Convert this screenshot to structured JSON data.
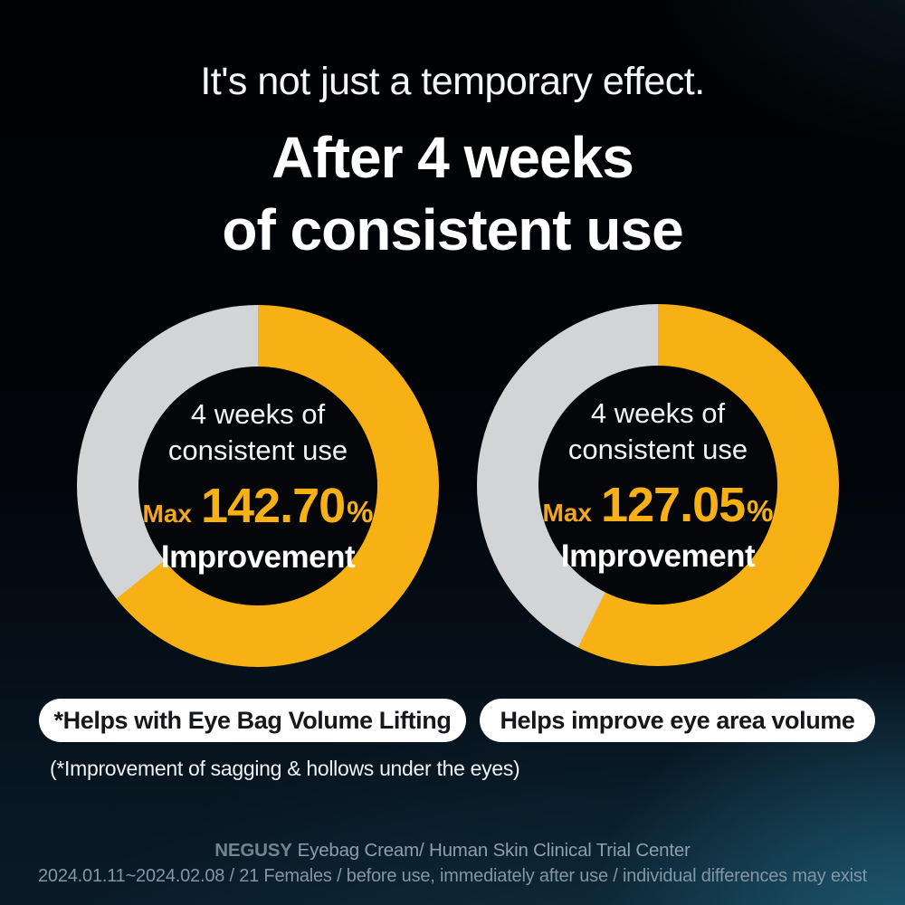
{
  "header": {
    "subtitle": "It's not just a temporary effect.",
    "title_line1": "After 4 weeks",
    "title_line2": "of consistent use"
  },
  "chart_data": [
    {
      "type": "pie",
      "subtype": "donut",
      "center_label_line1": "4 weeks of",
      "center_label_line2": "consistent use",
      "value_prefix": "Max",
      "value": "142.70",
      "unit": "%",
      "value_label": "Improvement",
      "caption_pill": "*Helps with Eye Bag Volume Lifting",
      "legend_position": "none",
      "segments": [
        {
          "name": "improvement-arc",
          "arc_degrees": 231.5,
          "fraction": 0.643,
          "color": "#F7B114"
        },
        {
          "name": "remainder-arc",
          "arc_degrees": 128.5,
          "fraction": 0.357,
          "color": "#D3D4D6"
        }
      ]
    },
    {
      "type": "pie",
      "subtype": "donut",
      "center_label_line1": "4 weeks of",
      "center_label_line2": "consistent use",
      "value_prefix": "Max",
      "value": "127.05",
      "unit": "%",
      "value_label": "Improvement",
      "caption_pill": "Helps improve eye area volume",
      "legend_position": "none",
      "segments": [
        {
          "name": "improvement-arc",
          "arc_degrees": 206.2,
          "fraction": 0.573,
          "color": "#F7B114"
        },
        {
          "name": "remainder-arc",
          "arc_degrees": 153.8,
          "fraction": 0.427,
          "color": "#D3D4D6"
        }
      ]
    }
  ],
  "footnote": "(*Improvement of sagging & hollows under the eyes)",
  "footer": {
    "brand": "NEGUSY",
    "line1_rest": "Eyebag Cream/ Human Skin Clinical Trial Center",
    "line2": "2024.01.11~2024.02.08 / 21 Females / before use, immediately after use / individual differences may exist"
  },
  "colors": {
    "accent_yellow": "#F7B114",
    "ring_gray": "#D3D4D6",
    "hole_black": "#050609",
    "pill_bg": "#FFFFFF",
    "pill_text": "#15171C",
    "footer_gray": "#8296A4",
    "background_teal_glow": "#1A5066"
  }
}
